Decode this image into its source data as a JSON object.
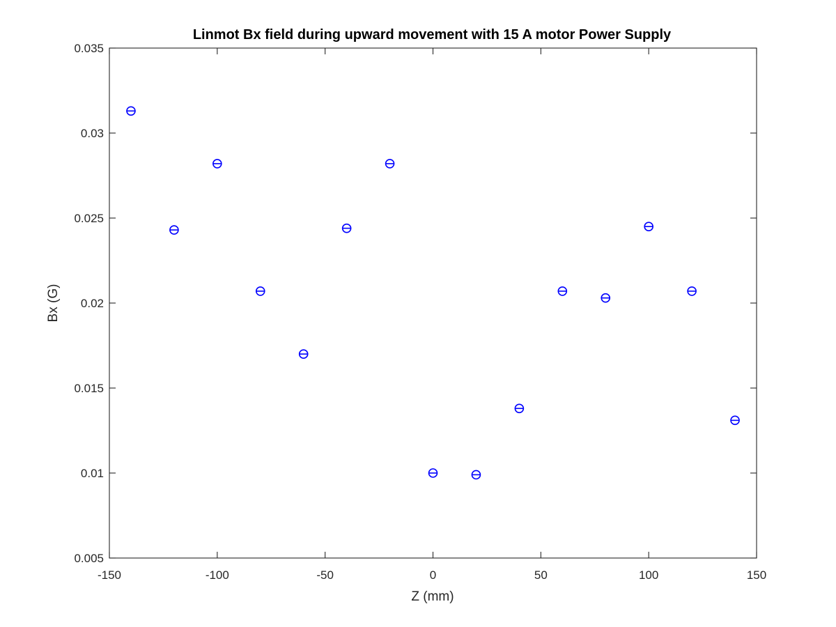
{
  "chart_data": {
    "type": "scatter",
    "title": "Linmot Bx field during upward movement with 15 A motor Power Supply",
    "xlabel": "Z (mm)",
    "ylabel": "Bx (G)",
    "xlim": [
      -150,
      150
    ],
    "ylim": [
      0.005,
      0.035
    ],
    "xticks": [
      -150,
      -100,
      -50,
      0,
      50,
      100,
      150
    ],
    "xtick_labels": [
      "-150",
      "-100",
      "-50",
      "0",
      "50",
      "100",
      "150"
    ],
    "yticks": [
      0.005,
      0.01,
      0.015,
      0.02,
      0.025,
      0.03,
      0.035
    ],
    "ytick_labels": [
      "0.005",
      "0.01",
      "0.015",
      "0.02",
      "0.025",
      "0.03",
      "0.035"
    ],
    "grid": false,
    "marker": "circle-with-horizontal-bar",
    "marker_color": "#0000ff",
    "series": [
      {
        "x": [
          -140,
          -120,
          -100,
          -80,
          -60,
          -40,
          -20,
          0,
          20,
          40,
          60,
          80,
          100,
          120,
          140
        ],
        "y": [
          0.0313,
          0.0243,
          0.0282,
          0.0207,
          0.017,
          0.0244,
          0.0282,
          0.01,
          0.0099,
          0.0138,
          0.0207,
          0.0203,
          0.0245,
          0.0207,
          0.0131
        ]
      }
    ]
  }
}
